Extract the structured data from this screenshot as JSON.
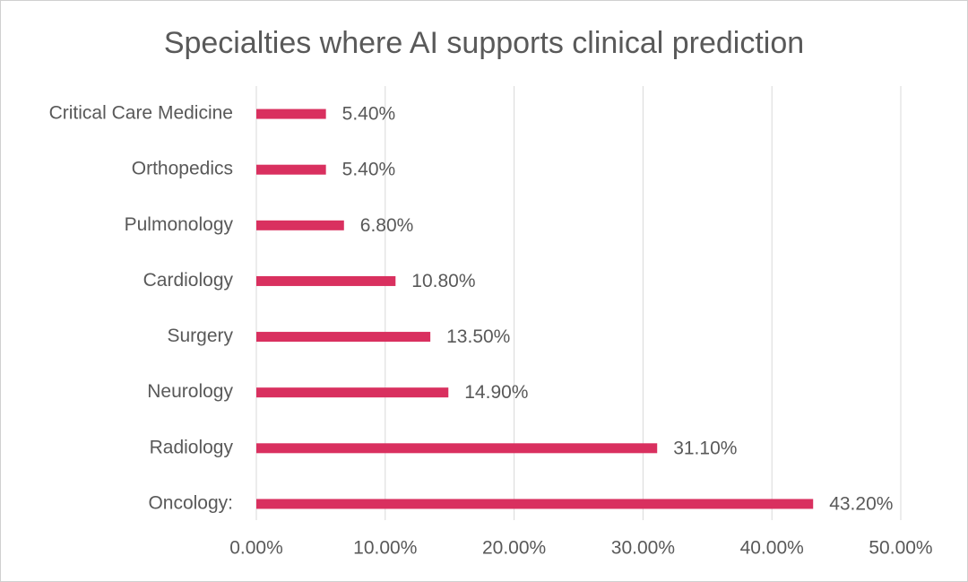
{
  "chart_data": {
    "type": "hbar",
    "title": "Specialties where AI supports clinical prediction",
    "categories": [
      "Critical Care Medicine",
      "Orthopedics",
      "Pulmonology",
      "Cardiology",
      "Surgery",
      "Neurology",
      "Radiology",
      "Oncology:"
    ],
    "values": [
      5.4,
      5.4,
      6.8,
      10.8,
      13.5,
      14.9,
      31.1,
      43.2
    ],
    "value_labels": [
      "5.40%",
      "5.40%",
      "6.80%",
      "10.80%",
      "13.50%",
      "14.90%",
      "31.10%",
      "43.20%"
    ],
    "color": "#d9305f",
    "xlim": [
      0,
      50
    ],
    "xticks": [
      {
        "value": 0,
        "label": "0.00%"
      },
      {
        "value": 10,
        "label": "10.00%"
      },
      {
        "value": 20,
        "label": "20.00%"
      },
      {
        "value": 30,
        "label": "30.00%"
      },
      {
        "value": 40,
        "label": "40.00%"
      },
      {
        "value": 50,
        "label": "50.00%"
      }
    ],
    "grid": true
  }
}
